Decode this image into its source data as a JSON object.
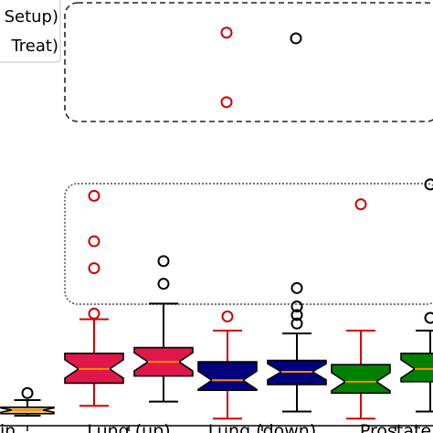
{
  "chart_data": {
    "type": "box",
    "title": "",
    "xlabel": "",
    "ylabel": "",
    "legend": {
      "placement": "top-left",
      "entries": [
        "Setup)",
        "Treat)"
      ]
    },
    "categories": [
      "in",
      "Lung (up)",
      "Lung (down)",
      "Prostate"
    ],
    "boxes": [
      {
        "category_index": 0,
        "color": "#e8c57a",
        "median_color": "#ff8c00",
        "whisker_color": "#000000",
        "flier_color": "#000000",
        "whislo": 0.2,
        "q1": 0.35,
        "med": 0.6,
        "q3": 0.8,
        "whishi": 1.3,
        "fliers": [
          1.8
        ]
      },
      {
        "category_index": 1,
        "color": "#e0174a",
        "median_color": "#ff8c00",
        "whisker_color": "#d40000",
        "flier_color": "#cc0000",
        "whislo": 0.9,
        "q1": 2.5,
        "med": 3.5,
        "q3": 4.6,
        "whishi": 7.0,
        "fliers": [
          7.4,
          15.7,
          12.5,
          10.6
        ]
      },
      {
        "category_index": 1,
        "color": "#e0174a",
        "median_color": "#ff8c00",
        "whisker_color": "#000000",
        "flier_color": "#000000",
        "whislo": 1.2,
        "q1": 3.0,
        "med": 4.0,
        "q3": 5.0,
        "whishi": 8.1,
        "fliers": [
          9.5,
          11.1
        ]
      },
      {
        "category_index": 2,
        "color": "#00007f",
        "median_color": "#ff8c00",
        "whisker_color": "#d40000",
        "flier_color": "#cc0000",
        "whislo": 0.0,
        "q1": 2.0,
        "med": 2.7,
        "q3": 4.0,
        "whishi": 6.2,
        "fliers": [
          7.2
        ]
      },
      {
        "category_index": 2,
        "color": "#00007f",
        "median_color": "#ff8c00",
        "whisker_color": "#000000",
        "flier_color": "#000000",
        "whislo": 0.5,
        "q1": 2.4,
        "med": 3.3,
        "q3": 4.1,
        "whishi": 6.0,
        "fliers": [
          6.7,
          7.3,
          7.9,
          9.2
        ]
      },
      {
        "category_index": 3,
        "color": "#008000",
        "median_color": "#ff8c00",
        "whisker_color": "#d40000",
        "flier_color": "#cc0000",
        "whislo": 0.0,
        "q1": 1.8,
        "med": 2.6,
        "q3": 3.8,
        "whishi": 6.2,
        "fliers": [
          15.1
        ]
      },
      {
        "category_index": 3,
        "color": "#008000",
        "median_color": "#ff8c00",
        "whisker_color": "#000000",
        "flier_color": "#000000",
        "whislo": 0.5,
        "q1": 2.6,
        "med": 3.5,
        "q3": 4.6,
        "whishi": 6.2,
        "fliers": [
          7.1,
          16.5
        ]
      }
    ],
    "upper_fliers": [
      {
        "category_index": 1,
        "value": 27.2,
        "color": "#cc0000"
      },
      {
        "category_index": 1,
        "value": 22.3,
        "color": "#cc0000"
      },
      {
        "category_index": 2,
        "value": 26.8,
        "color": "#000000"
      }
    ],
    "ylim": [
      -0.5,
      29.5
    ],
    "grid": false
  }
}
